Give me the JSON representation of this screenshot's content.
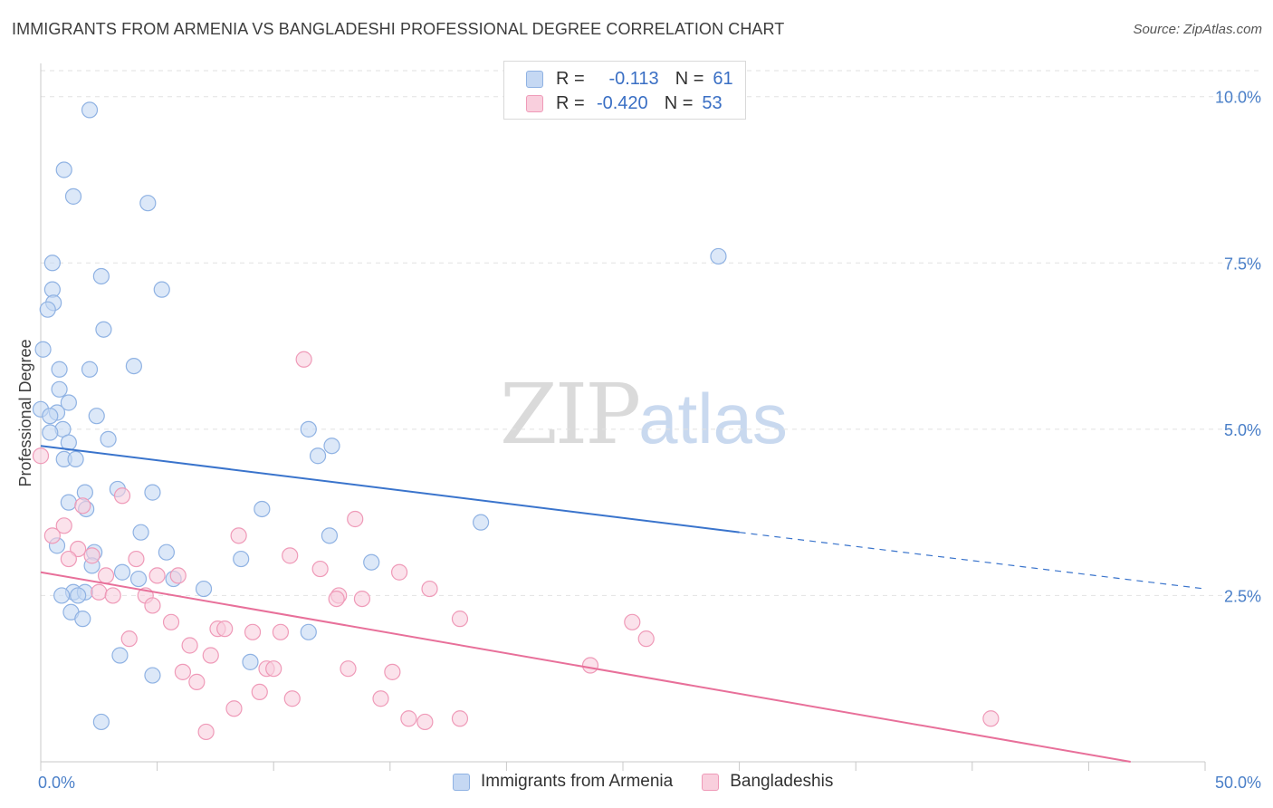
{
  "header": {
    "title": "IMMIGRANTS FROM ARMENIA VS BANGLADESHI PROFESSIONAL DEGREE CORRELATION CHART",
    "source": "Source: ZipAtlas.com"
  },
  "watermark": {
    "zip": "ZIP",
    "atlas": "atlas"
  },
  "legend": {
    "rows": [
      {
        "r_label": "R =",
        "r_value": "-0.113",
        "n_label": "N =",
        "n_value": "61"
      },
      {
        "r_label": "R =",
        "r_value": "-0.420",
        "n_label": "N =",
        "n_value": "53"
      }
    ]
  },
  "colors": {
    "blue_fill": "#c5d8f3",
    "blue_stroke": "#8fb2e3",
    "blue_line": "#3a74cc",
    "pink_fill": "#f9cfdd",
    "pink_stroke": "#ef9ab8",
    "pink_line": "#e8709a"
  },
  "chart_data": {
    "type": "scatter",
    "xlabel": "",
    "ylabel": "Professional Degree",
    "xlim": [
      0,
      50
    ],
    "ylim": [
      0,
      10.5
    ],
    "x_tick_labels": [
      {
        "value": 0,
        "label": "0.0%"
      },
      {
        "value": 50,
        "label": "50.0%"
      }
    ],
    "y_tick_labels": [
      {
        "value": 2.5,
        "label": "2.5%"
      },
      {
        "value": 5.0,
        "label": "5.0%"
      },
      {
        "value": 7.5,
        "label": "7.5%"
      },
      {
        "value": 10.0,
        "label": "10.0%"
      }
    ],
    "series": [
      {
        "name": "Immigrants from Armenia",
        "color": "blue",
        "trend": {
          "x0": 0,
          "y0": 4.75,
          "x1": 30,
          "y1": 3.45,
          "dash_to_x": 50,
          "dash_to_y": 2.6
        },
        "points": [
          [
            2.1,
            9.8
          ],
          [
            1.0,
            8.9
          ],
          [
            1.4,
            8.5
          ],
          [
            4.6,
            8.4
          ],
          [
            0.5,
            7.5
          ],
          [
            2.6,
            7.3
          ],
          [
            5.2,
            7.1
          ],
          [
            0.5,
            7.1
          ],
          [
            0.55,
            6.9
          ],
          [
            0.3,
            6.8
          ],
          [
            2.7,
            6.5
          ],
          [
            0.1,
            6.2
          ],
          [
            0.8,
            5.9
          ],
          [
            2.1,
            5.9
          ],
          [
            4.0,
            5.95
          ],
          [
            0.8,
            5.6
          ],
          [
            1.2,
            5.4
          ],
          [
            0.0,
            5.3
          ],
          [
            0.7,
            5.25
          ],
          [
            0.4,
            5.2
          ],
          [
            2.4,
            5.2
          ],
          [
            0.95,
            5.0
          ],
          [
            0.4,
            4.95
          ],
          [
            11.5,
            5.0
          ],
          [
            2.9,
            4.85
          ],
          [
            1.2,
            4.8
          ],
          [
            12.5,
            4.75
          ],
          [
            11.9,
            4.6
          ],
          [
            1.0,
            4.55
          ],
          [
            1.5,
            4.55
          ],
          [
            1.9,
            4.05
          ],
          [
            3.3,
            4.1
          ],
          [
            4.8,
            4.05
          ],
          [
            1.2,
            3.9
          ],
          [
            1.95,
            3.8
          ],
          [
            9.5,
            3.8
          ],
          [
            18.9,
            3.6
          ],
          [
            4.3,
            3.45
          ],
          [
            12.4,
            3.4
          ],
          [
            0.7,
            3.25
          ],
          [
            2.3,
            3.15
          ],
          [
            5.4,
            3.15
          ],
          [
            8.6,
            3.05
          ],
          [
            2.2,
            2.95
          ],
          [
            14.2,
            3.0
          ],
          [
            3.5,
            2.85
          ],
          [
            4.2,
            2.75
          ],
          [
            5.7,
            2.75
          ],
          [
            7.0,
            2.6
          ],
          [
            1.4,
            2.55
          ],
          [
            1.9,
            2.55
          ],
          [
            0.9,
            2.5
          ],
          [
            1.6,
            2.5
          ],
          [
            1.3,
            2.25
          ],
          [
            1.8,
            2.15
          ],
          [
            11.5,
            1.95
          ],
          [
            3.4,
            1.6
          ],
          [
            9.0,
            1.5
          ],
          [
            4.8,
            1.3
          ],
          [
            2.6,
            0.6
          ],
          [
            29.1,
            7.6
          ]
        ]
      },
      {
        "name": "Bangladeshis",
        "color": "pink",
        "trend": {
          "x0": 0,
          "y0": 2.85,
          "x1": 46.8,
          "y1": 0.0
        },
        "points": [
          [
            11.3,
            6.05
          ],
          [
            0.0,
            4.6
          ],
          [
            3.5,
            4.0
          ],
          [
            1.8,
            3.85
          ],
          [
            13.5,
            3.65
          ],
          [
            1.0,
            3.55
          ],
          [
            0.5,
            3.4
          ],
          [
            8.5,
            3.4
          ],
          [
            1.6,
            3.2
          ],
          [
            1.2,
            3.05
          ],
          [
            2.2,
            3.1
          ],
          [
            4.1,
            3.05
          ],
          [
            10.7,
            3.1
          ],
          [
            12.0,
            2.9
          ],
          [
            15.4,
            2.85
          ],
          [
            2.8,
            2.8
          ],
          [
            5.0,
            2.8
          ],
          [
            5.9,
            2.8
          ],
          [
            16.7,
            2.6
          ],
          [
            2.5,
            2.55
          ],
          [
            3.1,
            2.5
          ],
          [
            4.5,
            2.5
          ],
          [
            12.8,
            2.5
          ],
          [
            12.7,
            2.45
          ],
          [
            13.8,
            2.45
          ],
          [
            4.8,
            2.35
          ],
          [
            18.0,
            2.15
          ],
          [
            5.6,
            2.1
          ],
          [
            25.4,
            2.1
          ],
          [
            7.6,
            2.0
          ],
          [
            7.9,
            2.0
          ],
          [
            9.1,
            1.95
          ],
          [
            10.3,
            1.95
          ],
          [
            3.8,
            1.85
          ],
          [
            26.0,
            1.85
          ],
          [
            6.4,
            1.75
          ],
          [
            7.3,
            1.6
          ],
          [
            23.6,
            1.45
          ],
          [
            13.2,
            1.4
          ],
          [
            9.7,
            1.4
          ],
          [
            10.0,
            1.4
          ],
          [
            6.1,
            1.35
          ],
          [
            15.1,
            1.35
          ],
          [
            6.7,
            1.2
          ],
          [
            9.4,
            1.05
          ],
          [
            10.8,
            0.95
          ],
          [
            14.6,
            0.95
          ],
          [
            8.3,
            0.8
          ],
          [
            15.8,
            0.65
          ],
          [
            16.5,
            0.6
          ],
          [
            18.0,
            0.65
          ],
          [
            40.8,
            0.65
          ],
          [
            7.1,
            0.45
          ]
        ]
      }
    ]
  },
  "bottom_legend": {
    "items": [
      {
        "label": "Immigrants from Armenia"
      },
      {
        "label": "Bangladeshis"
      }
    ]
  }
}
